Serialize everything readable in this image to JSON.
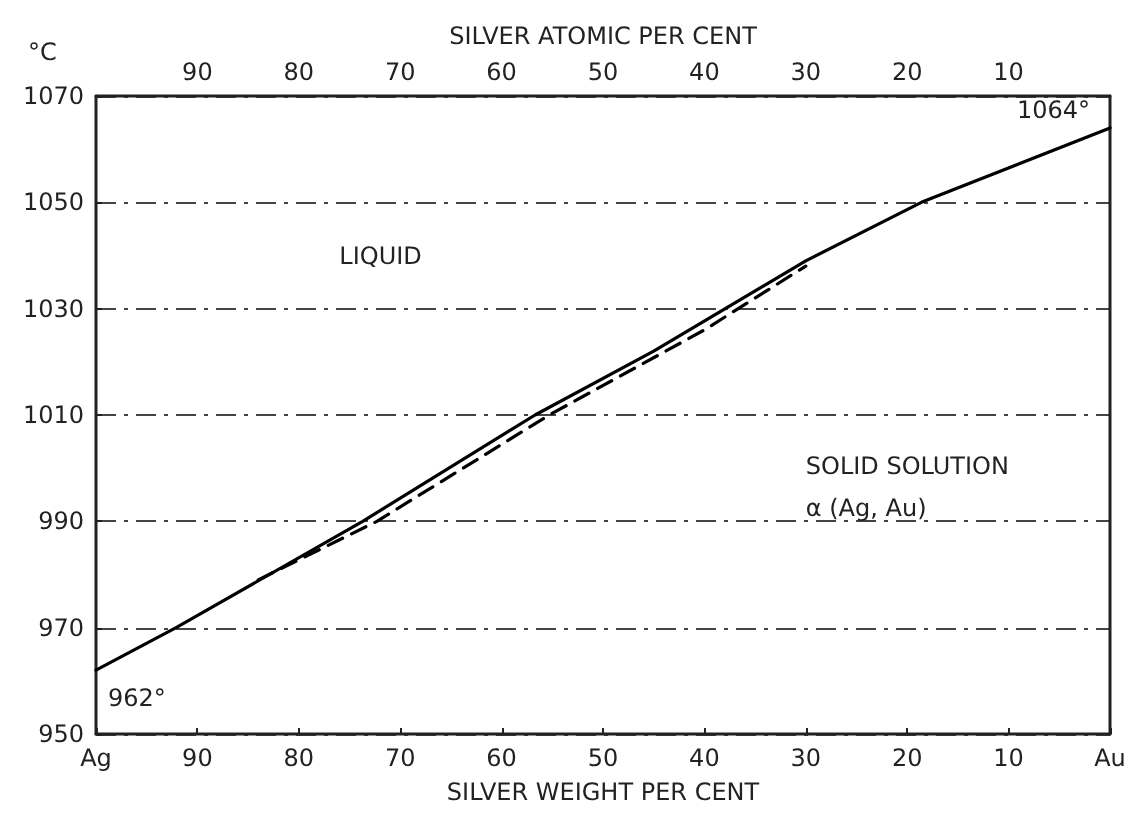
{
  "chart_data": {
    "type": "line",
    "xlabel": "SILVER WEIGHT PER CENT",
    "x2label": "SILVER ATOMIC PER CENT",
    "ylabel": "°C",
    "xlim": [
      100,
      0
    ],
    "xticks": [
      {
        "value": 100,
        "label": "Ag"
      },
      90,
      80,
      70,
      60,
      50,
      40,
      30,
      20,
      10,
      {
        "value": 0,
        "label": "Au"
      }
    ],
    "x2lim": [
      100,
      0
    ],
    "x2ticks": [
      90,
      80,
      70,
      60,
      50,
      40,
      30,
      20,
      10
    ],
    "ylim": [
      950,
      1070
    ],
    "yticks": [
      950,
      970,
      990,
      1010,
      1030,
      1050,
      1070
    ],
    "grid": "y",
    "marker": "none",
    "series": [
      {
        "color": "#000000",
        "line_style": "solid",
        "x": [
          100,
          92.1,
          73.7,
          56.7,
          45,
          30,
          18.6,
          0
        ],
        "values": [
          962,
          970,
          990,
          1010,
          1022,
          1039,
          1050,
          1064
        ]
      },
      {
        "color": "#000000",
        "line_style": "dashed",
        "x": [
          84,
          72.3,
          55.3,
          40,
          30
        ],
        "values": [
          979,
          990,
          1010,
          1026,
          1038
        ]
      }
    ],
    "annotations": [
      "LIQUID",
      "SOLID SOLUTION",
      "α (Ag, Au)",
      {
        "text": "962°",
        "x": 100,
        "y": 962
      },
      {
        "text": "1064°",
        "x": 0,
        "y": 1064
      }
    ]
  }
}
